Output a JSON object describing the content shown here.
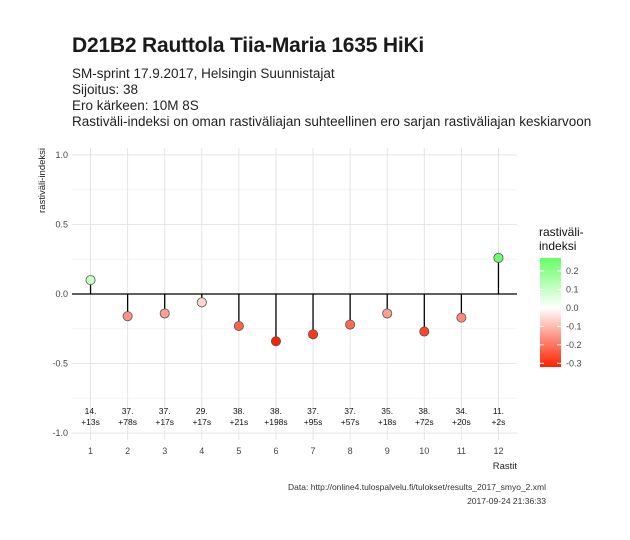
{
  "title": "D21B2 Rauttola Tiia-Maria 1635 HiKi",
  "subtitle_lines": [
    "SM-sprint 17.9.2017, Helsingin Suunnistajat",
    "Sijoitus: 38",
    "Ero kärkeen: 10M 8S",
    "Rastiväli-indeksi on oman rastiväliajan suhteellinen ero sarjan rastiväliajan keskiarvoon"
  ],
  "caption_lines": [
    "Data: http://online4.tulospalvelu.fi/tulokset/results_2017_smyo_2.xml",
    "2017-09-24 21:36:33"
  ],
  "chart_data": {
    "type": "scatter",
    "style": "lollipop",
    "xlabel": "Rastit",
    "ylabel": "rastiväli-indeksi",
    "x": [
      1,
      2,
      3,
      4,
      5,
      6,
      7,
      8,
      9,
      10,
      11,
      12
    ],
    "y": [
      0.1,
      -0.16,
      -0.14,
      -0.06,
      -0.23,
      -0.34,
      -0.29,
      -0.22,
      -0.14,
      -0.27,
      -0.17,
      0.26
    ],
    "annotations": [
      [
        "14.",
        "+13s"
      ],
      [
        "37.",
        "+78s"
      ],
      [
        "37.",
        "+17s"
      ],
      [
        "29.",
        "+17s"
      ],
      [
        "38.",
        "+21s"
      ],
      [
        "38.",
        "+198s"
      ],
      [
        "37.",
        "+95s"
      ],
      [
        "37.",
        "+57s"
      ],
      [
        "35.",
        "+18s"
      ],
      [
        "38.",
        "+72s"
      ],
      [
        "34.",
        "+20s"
      ],
      [
        "11.",
        "+2s"
      ]
    ],
    "xlim": [
      0.5,
      12.5
    ],
    "ylim": [
      -1.05,
      1.05
    ],
    "yticks": [
      -1.0,
      -0.5,
      0.0,
      0.5,
      1.0
    ],
    "ytick_labels": [
      "-1.0",
      "-0.5",
      "0.0",
      "0.5",
      "1.0"
    ],
    "grid": true,
    "legend": {
      "title_lines": [
        "rastiväli-",
        "indeksi"
      ],
      "placement": "right",
      "ticks": [
        0.2,
        0.1,
        0.0,
        -0.1,
        -0.2,
        -0.3
      ],
      "tick_labels": [
        "0.2",
        "0.1",
        "0.0",
        "-0.1",
        "-0.2",
        "-0.3"
      ],
      "range": [
        -0.32,
        0.27
      ],
      "colors": {
        "high": "#66ff66",
        "mid": "#ffffff",
        "low": "#ff2200"
      }
    }
  }
}
